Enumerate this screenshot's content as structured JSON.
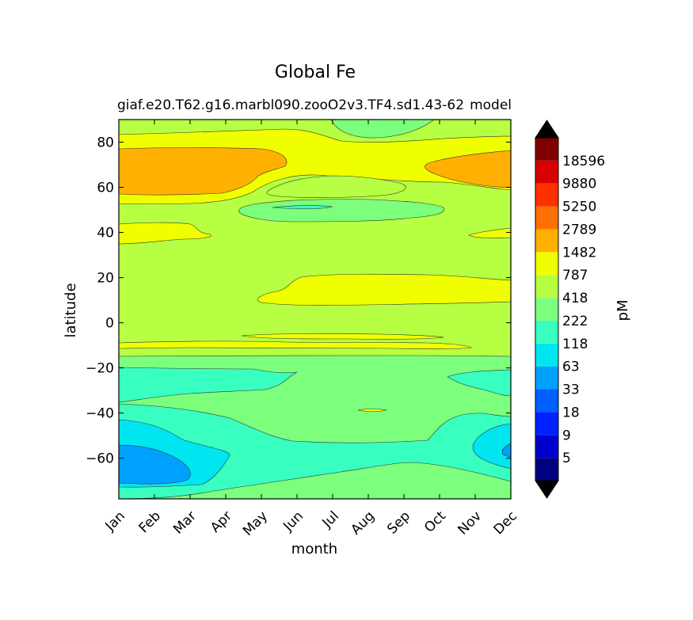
{
  "chart_data": {
    "type": "contour",
    "title": "Global Fe",
    "subtitle": "giaf.e20.T62.g16.marbl090.zooO2v3.TF4.sd1.43-62",
    "subtitle_overlay": "model",
    "xlabel": "month",
    "ylabel": "latitude",
    "x": [
      "Jan",
      "Feb",
      "Mar",
      "Apr",
      "May",
      "Jun",
      "Jul",
      "Aug",
      "Sep",
      "Oct",
      "Nov",
      "Dec"
    ],
    "xlim": [
      1,
      12
    ],
    "ylim": [
      -78,
      90
    ],
    "yticks": [
      -60,
      -40,
      -20,
      0,
      20,
      40,
      60,
      80
    ],
    "colorbar": {
      "label": "pM",
      "levels": [
        5,
        9,
        18,
        33,
        63,
        118,
        222,
        418,
        787,
        1482,
        2789,
        5250,
        9880,
        18596
      ],
      "colors": [
        "#000080",
        "#0000cc",
        "#0022ff",
        "#0060ff",
        "#00a0ff",
        "#00e6f0",
        "#38ffc0",
        "#7cff7c",
        "#b6ff42",
        "#f0ff00",
        "#ffb000",
        "#ff7000",
        "#ff3000",
        "#d80000",
        "#800000"
      ]
    },
    "bands": [
      {
        "lat": [
          82,
          90
        ],
        "level_index": 8,
        "note": "above 80N mostly 418-787, 222-418 patch Jun-Sep"
      },
      {
        "lat": [
          78,
          82
        ],
        "level_index": 9,
        "note": "787-1482"
      },
      {
        "lat": [
          58,
          78
        ],
        "level_index": 10,
        "note": "1482-2789 in Jan-Mar and Oct-Dec, 787-1482 mid-year"
      },
      {
        "lat": [
          45,
          58
        ],
        "level_index": 8,
        "note": "418-787 with 222-418 patch May-Sep"
      },
      {
        "lat": [
          34,
          45
        ],
        "level_index": 9,
        "note": "787-1482 in Jan-Feb"
      },
      {
        "lat": [
          8,
          22
        ],
        "level_index": 9,
        "note": "787-1482 Jun-Dec"
      },
      {
        "lat": [
          -20,
          8
        ],
        "level_index": 8,
        "note": "418-787"
      },
      {
        "lat": [
          -35,
          -20
        ],
        "level_index": 7,
        "note": "222-418"
      },
      {
        "lat": [
          -55,
          -35
        ],
        "level_index": 7,
        "note": "118-222 near coasts"
      },
      {
        "lat": [
          -78,
          -55
        ],
        "level_index": 5,
        "note": "63-118 with 33-63 patch Jan-Mar"
      }
    ]
  }
}
